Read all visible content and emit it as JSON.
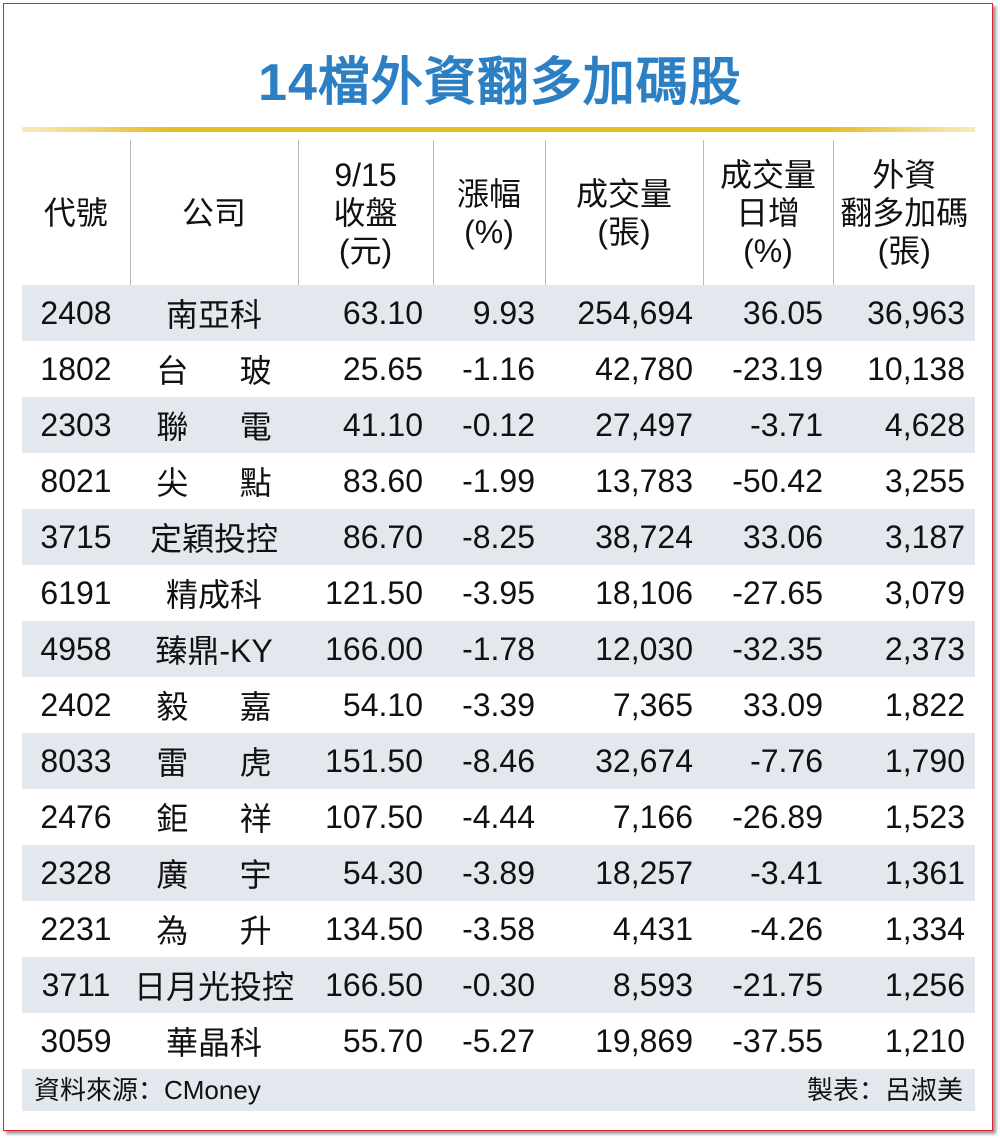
{
  "header": {
    "title": "14檔外資翻多加碼股"
  },
  "table": {
    "columns": [
      "代號",
      "公司",
      "9/15\n收盤\n(元)",
      "漲幅\n(%)",
      "成交量\n(張)",
      "成交量\n日增\n(%)",
      "外資\n翻多加碼\n(張)"
    ],
    "rows": [
      [
        "2408",
        "南亞科",
        "63.10",
        "9.93",
        "254,694",
        "36.05",
        "36,963"
      ],
      [
        "1802",
        "台玻",
        "25.65",
        "-1.16",
        "42,780",
        "-23.19",
        "10,138"
      ],
      [
        "2303",
        "聯電",
        "41.10",
        "-0.12",
        "27,497",
        "-3.71",
        "4,628"
      ],
      [
        "8021",
        "尖點",
        "83.60",
        "-1.99",
        "13,783",
        "-50.42",
        "3,255"
      ],
      [
        "3715",
        "定穎投控",
        "86.70",
        "-8.25",
        "38,724",
        "33.06",
        "3,187"
      ],
      [
        "6191",
        "精成科",
        "121.50",
        "-3.95",
        "18,106",
        "-27.65",
        "3,079"
      ],
      [
        "4958",
        "臻鼎-KY",
        "166.00",
        "-1.78",
        "12,030",
        "-32.35",
        "2,373"
      ],
      [
        "2402",
        "毅嘉",
        "54.10",
        "-3.39",
        "7,365",
        "33.09",
        "1,822"
      ],
      [
        "8033",
        "雷虎",
        "151.50",
        "-8.46",
        "32,674",
        "-7.76",
        "1,790"
      ],
      [
        "2476",
        "鉅祥",
        "107.50",
        "-4.44",
        "7,166",
        "-26.89",
        "1,523"
      ],
      [
        "2328",
        "廣宇",
        "54.30",
        "-3.89",
        "18,257",
        "-3.41",
        "1,361"
      ],
      [
        "2231",
        "為升",
        "134.50",
        "-3.58",
        "4,431",
        "-4.26",
        "1,334"
      ],
      [
        "3711",
        "日月光投控",
        "166.50",
        "-0.30",
        "8,593",
        "-21.75",
        "1,256"
      ],
      [
        "3059",
        "華晶科",
        "55.70",
        "-5.27",
        "19,869",
        "-37.55",
        "1,210"
      ]
    ]
  },
  "footer": {
    "source": "資料來源：CMoney",
    "maker": "製表：呂淑美"
  }
}
